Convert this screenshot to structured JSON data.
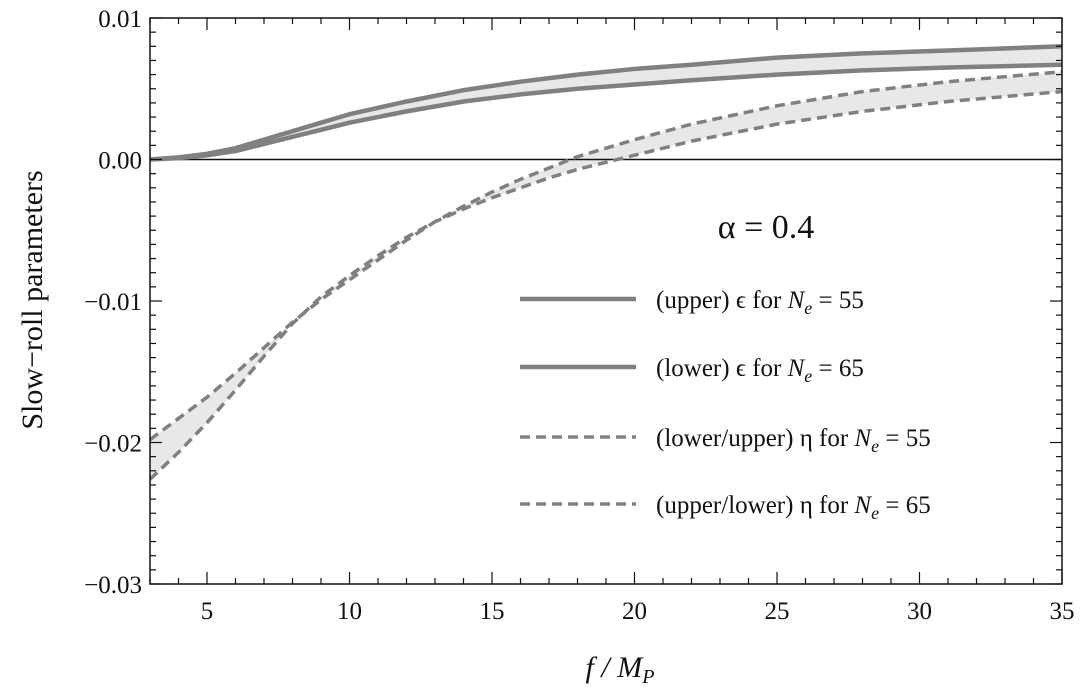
{
  "chart_data": {
    "type": "line",
    "xlabel": "f / M_P",
    "ylabel": "Slow−roll  parameters",
    "xlim": [
      3,
      35
    ],
    "ylim": [
      -0.03,
      0.01
    ],
    "x_ticks": [
      5,
      10,
      15,
      20,
      25,
      30,
      35
    ],
    "y_ticks": [
      0.01,
      0.0,
      -0.01,
      -0.02,
      -0.03
    ],
    "x_tick_labels": [
      "5",
      "10",
      "15",
      "20",
      "25",
      "30",
      "35"
    ],
    "y_tick_labels": [
      "0.01",
      "0.00",
      "−0.01",
      "−0.02",
      "−0.03"
    ],
    "annotation": "α = 0.4",
    "legend_position": "right",
    "colors": {
      "curve": "#808080",
      "band": "#e8e8e8",
      "frame": "#111111"
    },
    "series": [
      {
        "name": "(upper) ϵ for N_e = 55",
        "style": "solid",
        "x": [
          3,
          4,
          5,
          6,
          7,
          8,
          9,
          10,
          12,
          14,
          16,
          18,
          20,
          22,
          25,
          28,
          31,
          35
        ],
        "y": [
          0.0,
          0.00015,
          0.0004,
          0.0008,
          0.0014,
          0.002,
          0.0026,
          0.0032,
          0.0041,
          0.0049,
          0.0055,
          0.006,
          0.0064,
          0.0067,
          0.0072,
          0.0075,
          0.0077,
          0.008
        ]
      },
      {
        "name": "(lower) ϵ for N_e = 65",
        "style": "solid",
        "x": [
          3,
          4,
          5,
          6,
          7,
          8,
          9,
          10,
          12,
          14,
          16,
          18,
          20,
          22,
          25,
          28,
          31,
          35
        ],
        "y": [
          0.0,
          0.0001,
          0.0003,
          0.0006,
          0.0011,
          0.0016,
          0.0021,
          0.0026,
          0.0034,
          0.0041,
          0.0046,
          0.005,
          0.0053,
          0.0056,
          0.006,
          0.0063,
          0.0065,
          0.0067
        ]
      },
      {
        "name": "(lower/upper) η for N_e = 55",
        "style": "dashed",
        "x": [
          3,
          4,
          5,
          6,
          7,
          8,
          9,
          10,
          11,
          12,
          13,
          14,
          15,
          16,
          17,
          18,
          19,
          20,
          22,
          25,
          28,
          31,
          35
        ],
        "y": [
          -0.0198,
          -0.0183,
          -0.0168,
          -0.0151,
          -0.0133,
          -0.0115,
          -0.0099,
          -0.0085,
          -0.0071,
          -0.0057,
          -0.0044,
          -0.0033,
          -0.0023,
          -0.0014,
          -0.0006,
          0.0002,
          0.0008,
          0.0014,
          0.0025,
          0.0038,
          0.0048,
          0.0055,
          0.0062
        ]
      },
      {
        "name": "(upper/lower) η for N_e = 65",
        "style": "dashed",
        "x": [
          3,
          4,
          5,
          6,
          7,
          8,
          9,
          10,
          11,
          12,
          13,
          14,
          15,
          16,
          17,
          18,
          19,
          20,
          22,
          25,
          28,
          31,
          35
        ],
        "y": [
          -0.0226,
          -0.0207,
          -0.0186,
          -0.0163,
          -0.0139,
          -0.0116,
          -0.0097,
          -0.0082,
          -0.0068,
          -0.0055,
          -0.0044,
          -0.0035,
          -0.0027,
          -0.002,
          -0.0013,
          -0.0007,
          -0.0002,
          0.0003,
          0.0013,
          0.0025,
          0.0034,
          0.0041,
          0.0048
        ]
      }
    ]
  }
}
